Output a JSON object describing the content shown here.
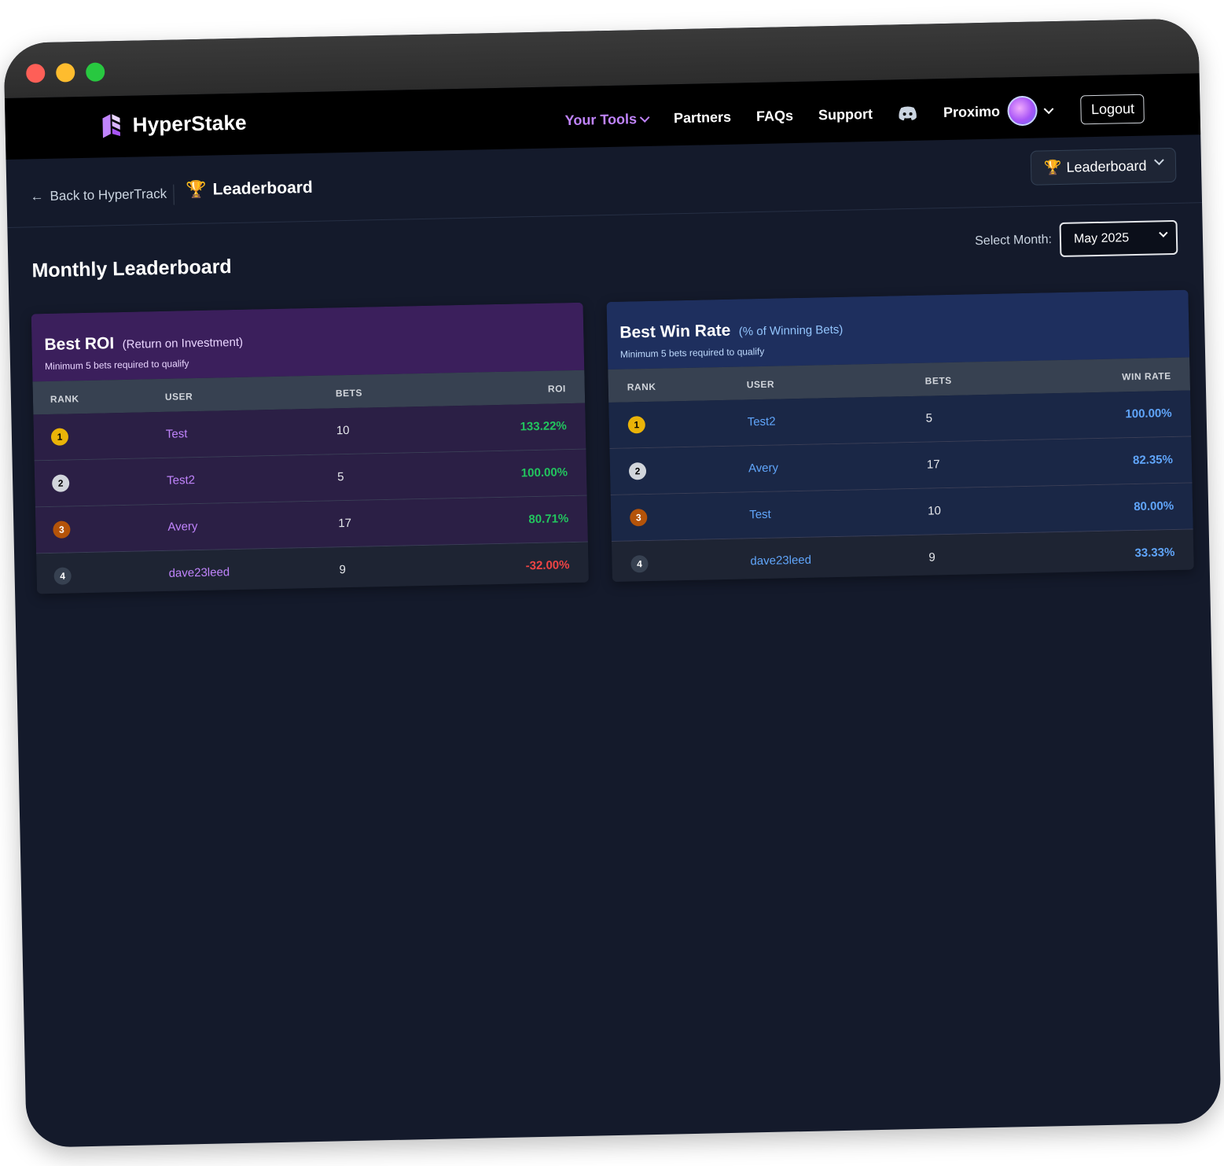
{
  "brand": {
    "name": "HyperStake"
  },
  "nav": {
    "tools": "Your Tools",
    "partners": "Partners",
    "faqs": "FAQs",
    "support": "Support",
    "username": "Proximo",
    "logout": "Logout"
  },
  "subbar": {
    "back": "Back to HyperTrack",
    "title": "Leaderboard",
    "select": "Leaderboard"
  },
  "page": {
    "title": "Monthly Leaderboard",
    "month_label": "Select Month:",
    "month_value": "May 2025"
  },
  "roi": {
    "title": "Best ROI",
    "subtitle": "(Return on Investment)",
    "note": "Minimum 5 bets required to qualify",
    "headers": [
      "RANK",
      "USER",
      "BETS",
      "ROI"
    ],
    "rows": [
      {
        "rank": "1",
        "user": "Test",
        "bets": "10",
        "value": "133.22%"
      },
      {
        "rank": "2",
        "user": "Test2",
        "bets": "5",
        "value": "100.00%"
      },
      {
        "rank": "3",
        "user": "Avery",
        "bets": "17",
        "value": "80.71%"
      },
      {
        "rank": "4",
        "user": "dave23leed",
        "bets": "9",
        "value": "-32.00%"
      }
    ]
  },
  "win": {
    "title": "Best Win Rate",
    "subtitle": "(% of Winning Bets)",
    "note": "Minimum 5 bets required to qualify",
    "headers": [
      "RANK",
      "USER",
      "BETS",
      "WIN RATE"
    ],
    "rows": [
      {
        "rank": "1",
        "user": "Test2",
        "bets": "5",
        "value": "100.00%"
      },
      {
        "rank": "2",
        "user": "Avery",
        "bets": "17",
        "value": "82.35%"
      },
      {
        "rank": "3",
        "user": "Test",
        "bets": "10",
        "value": "80.00%"
      },
      {
        "rank": "4",
        "user": "dave23leed",
        "bets": "9",
        "value": "33.33%"
      }
    ]
  },
  "colors": {
    "accent_purple": "#c084fc",
    "accent_blue": "#60a5fa",
    "positive": "#22c55e",
    "negative": "#ef4444"
  }
}
